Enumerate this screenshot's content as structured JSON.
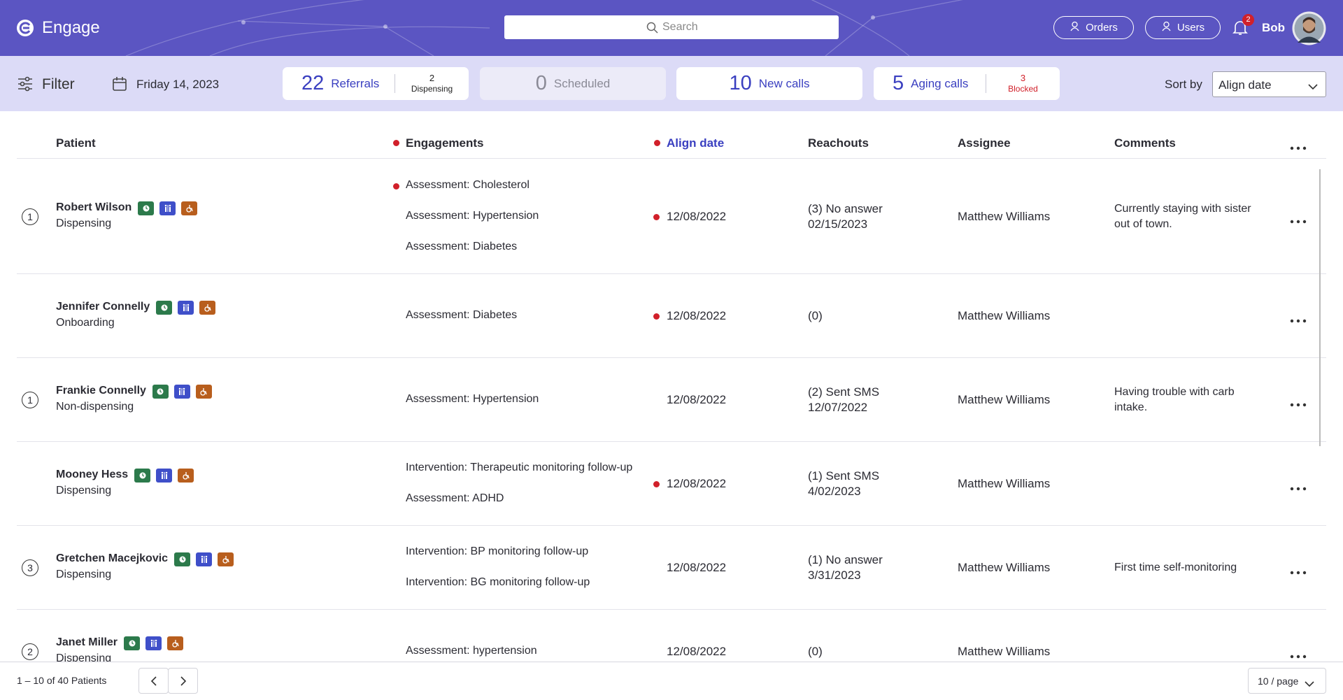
{
  "header": {
    "brand": "Engage",
    "search_placeholder": "Search",
    "buttons": [
      "Orders",
      "Users"
    ],
    "notifications": "2",
    "user": "Bob"
  },
  "toolbar": {
    "filter": "Filter",
    "date": "Friday 14, 2023",
    "stats": [
      {
        "value": 22,
        "label": "Referrals",
        "sub_value": 2,
        "sub_label": "Dispensing"
      },
      {
        "value": 0,
        "label": "Scheduled",
        "muted": true
      },
      {
        "value": 10,
        "label": "New calls"
      },
      {
        "value": 5,
        "label": "Aging calls",
        "sub_value": 3,
        "sub_label": "Blocked",
        "sub_alert": true
      }
    ],
    "sort_label": "Sort by",
    "sort_value": "Align date"
  },
  "table": {
    "columns": [
      {
        "label": "Patient"
      },
      {
        "label": "Engagements",
        "flag": true
      },
      {
        "label": "Align date",
        "flag": true,
        "sorted": true
      },
      {
        "label": "Reachouts"
      },
      {
        "label": "Assignee"
      },
      {
        "label": "Comments"
      }
    ],
    "rows": [
      {
        "badge": "1",
        "name": "Robert Wilson",
        "status": "Dispensing",
        "engagements": [
          {
            "text": "Assessment: Cholesterol",
            "flag": true
          },
          {
            "text": "Assessment: Hypertension"
          },
          {
            "text": "Assessment: Diabetes"
          }
        ],
        "align_date": "12/08/2022",
        "date_flag": true,
        "reachouts": [
          "(3) No answer",
          "02/15/2023"
        ],
        "assignee": "Matthew Williams",
        "comments": "Currently staying with sister out of town."
      },
      {
        "name": "Jennifer Connelly",
        "status": "Onboarding",
        "engagements": [
          {
            "text": "Assessment: Diabetes"
          }
        ],
        "align_date": "12/08/2022",
        "date_flag": true,
        "reachouts": [
          "(0)"
        ],
        "assignee": "Matthew Williams"
      },
      {
        "badge": "1",
        "name": "Frankie Connelly",
        "status": "Non-dispensing",
        "engagements": [
          {
            "text": "Assessment: Hypertension"
          }
        ],
        "align_date": "12/08/2022",
        "reachouts": [
          "(2) Sent SMS",
          "12/07/2022"
        ],
        "assignee": "Matthew Williams",
        "comments": "Having trouble with carb intake."
      },
      {
        "name": "Mooney Hess",
        "status": "Dispensing",
        "engagements": [
          {
            "text": "Intervention: Therapeutic monitoring follow-up"
          },
          {
            "text": "Assessment: ADHD"
          }
        ],
        "align_date": "12/08/2022",
        "date_flag": true,
        "reachouts": [
          "(1) Sent SMS",
          "4/02/2023"
        ],
        "assignee": "Matthew Williams"
      },
      {
        "badge": "3",
        "name": "Gretchen Macejkovic",
        "status": "Dispensing",
        "engagements": [
          {
            "text": "Intervention: BP monitoring follow-up"
          },
          {
            "text": "Intervention: BG monitoring follow-up"
          }
        ],
        "align_date": "12/08/2022",
        "reachouts": [
          "(1) No answer",
          "3/31/2023"
        ],
        "assignee": "Matthew Williams",
        "comments": "First time self-monitoring"
      },
      {
        "badge": "2",
        "name": "Janet Miller",
        "status": "Dispensing",
        "engagements": [
          {
            "text": "Assessment: hypertension"
          }
        ],
        "align_date": "12/08/2022",
        "reachouts": [
          "(0)"
        ],
        "assignee": "Matthew Williams"
      }
    ]
  },
  "footer": {
    "range": "1 – 10 of 40 Patients",
    "page_size": "10 / page"
  }
}
